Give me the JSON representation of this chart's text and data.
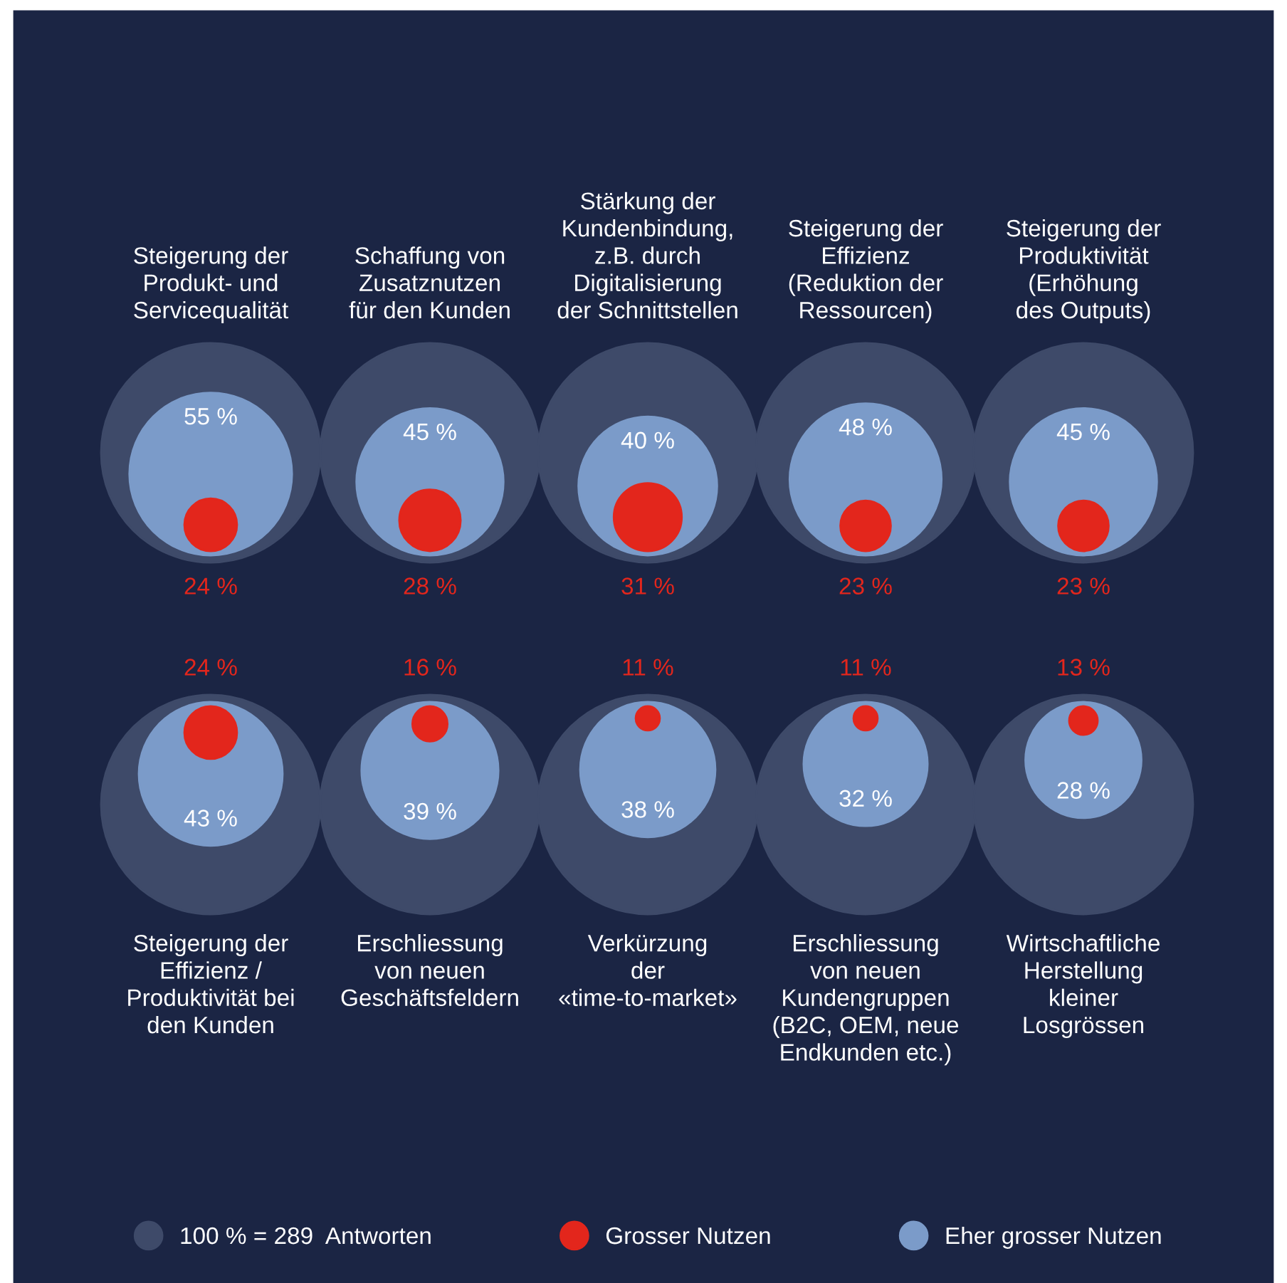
{
  "chart_data": {
    "type": "other",
    "categories": [
      "Steigerung der\nProdukt- und\nServicequalität",
      "Schaffung von\nZusatznutzen\nfür den Kunden",
      "Stärkung der\nKundenbindung,\nz.B. durch\nDigitalisierung\nder Schnittstellen",
      "Steigerung der\nEffizienz\n(Reduktion der\nRessourcen)",
      "Steigerung der\nProduktivität\n(Erhöhung\ndes Outputs)",
      "Steigerung der\nEffizienz /\nProduktivität bei\nden Kunden",
      "Erschliessung\nvon neuen\nGeschäftsfeldern",
      "Verkürzung\nder\n«time-to-market»",
      "Erschliessung\nvon neuen\nKundengruppen\n(B2C, OEM, neue\nEndkunden etc.)",
      "Wirtschaftliche\nHerstellung\nkleiner\nLosgrössen"
    ],
    "series": [
      {
        "name": "Grosser Nutzen",
        "color": "#e3261c",
        "values": [
          24,
          28,
          31,
          23,
          23,
          24,
          16,
          11,
          11,
          13
        ],
        "value_labels": [
          "24 %",
          "28 %",
          "31 %",
          "23 %",
          "23 %",
          "24 %",
          "16 %",
          "11 %",
          "11 %",
          "13 %"
        ]
      },
      {
        "name": "Eher grosser Nutzen",
        "color": "#7b9bc9",
        "values": [
          55,
          45,
          40,
          48,
          45,
          43,
          39,
          38,
          32,
          28
        ],
        "value_labels": [
          "55 %",
          "45 %",
          "40 %",
          "48 %",
          "45 %",
          "43 %",
          "39 %",
          "38 %",
          "32 %",
          "28 %"
        ]
      }
    ],
    "annotations": [
      "100 % = 289  Antworten"
    ],
    "legend": "bottom"
  }
}
